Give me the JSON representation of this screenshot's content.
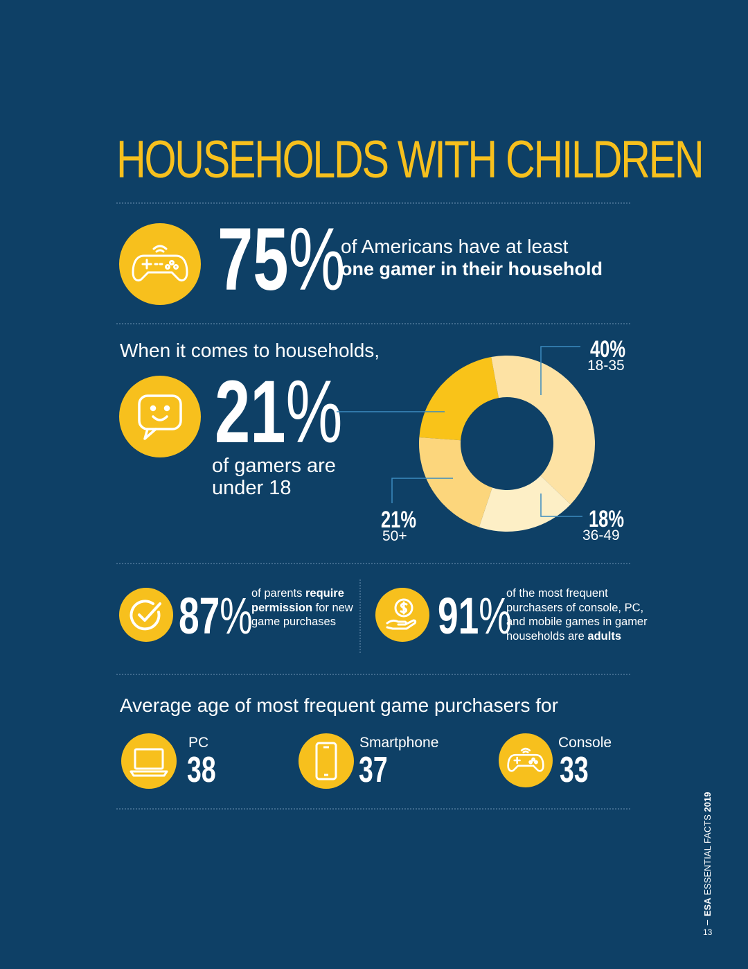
{
  "title": "HOUSEHOLDS WITH CHILDREN",
  "stat75": {
    "number": "75",
    "unit": "%",
    "line1": "of Americans have at least",
    "line2": "one gamer in their household"
  },
  "households_intro": "When it comes to households,",
  "stat21": {
    "number": "21",
    "unit": "%",
    "line1": "of gamers are",
    "line2": "under 18"
  },
  "stat87": {
    "number": "87",
    "unit": "%",
    "pre": "of parents ",
    "bold": "require permission",
    "post": " for new game purchases"
  },
  "stat91": {
    "number": "91",
    "unit": "%",
    "pre": "of the most frequent purchasers of console, PC, and mobile games in gamer households are ",
    "bold": "adults"
  },
  "avg_title": "Average age of most frequent game purchasers for",
  "avg_items": [
    {
      "label": "PC",
      "value": "38",
      "icon": "laptop-icon"
    },
    {
      "label": "Smartphone",
      "value": "37",
      "icon": "smartphone-icon"
    },
    {
      "label": "Console",
      "value": "33",
      "icon": "gamepad-icon"
    }
  ],
  "footer": {
    "brand": "ESA",
    "text": "ESSENTIAL FACTS",
    "year": "2019",
    "page": "13"
  },
  "colors": {
    "background": "#0e4066",
    "accent": "#f7c01d"
  },
  "chart_data": {
    "type": "pie",
    "donut": true,
    "slices": [
      {
        "label": "under 18",
        "value": 21,
        "pct_text": "21",
        "color": "#f9c319"
      },
      {
        "label": "18-35",
        "value": 40,
        "pct_text": "40%",
        "color": "#fde2a4"
      },
      {
        "label": "36-49",
        "value": 18,
        "pct_text": "18%",
        "color": "#fdefc6"
      },
      {
        "label": "50+",
        "value": 21,
        "pct_text": "21%",
        "color": "#fcd67c"
      }
    ]
  }
}
